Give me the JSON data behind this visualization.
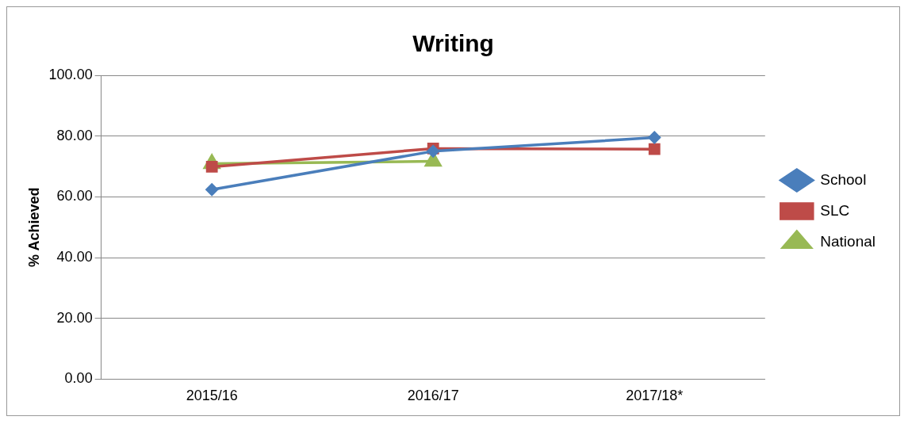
{
  "chart_data": {
    "type": "line",
    "title": "Writing",
    "ylabel": "% Achieved",
    "categories": [
      "2015/16",
      "2016/17",
      "2017/18*"
    ],
    "series": [
      {
        "name": "School",
        "color": "#4a7ebb",
        "marker": "diamond",
        "values": [
          62.4,
          75.0,
          79.5
        ]
      },
      {
        "name": "SLC",
        "color": "#be4b48",
        "marker": "square",
        "values": [
          69.9,
          75.9,
          75.7
        ]
      },
      {
        "name": "National",
        "color": "#98b954",
        "marker": "triangle",
        "values": [
          70.9,
          71.7,
          null
        ]
      }
    ],
    "ylim": [
      0,
      100
    ],
    "yticks": [
      {
        "value": 0,
        "label": "0.00"
      },
      {
        "value": 20,
        "label": "20.00"
      },
      {
        "value": 40,
        "label": "40.00"
      },
      {
        "value": 60,
        "label": "60.00"
      },
      {
        "value": 80,
        "label": "80.00"
      },
      {
        "value": 100,
        "label": "100.00"
      }
    ],
    "grid": "y",
    "legend": "right",
    "line_style": "solid"
  }
}
